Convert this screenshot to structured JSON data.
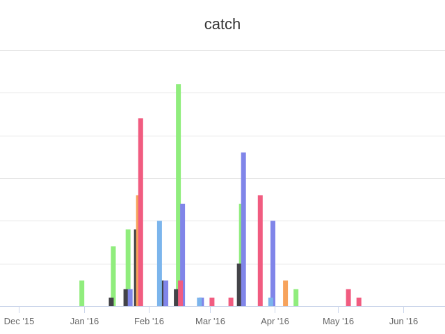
{
  "chart_data": {
    "type": "bar",
    "title": "catch",
    "xlabel": "",
    "ylabel": "",
    "ylim": [
      0,
      6
    ],
    "grid": true,
    "legend": "none",
    "x_range": [
      "2015-11-22",
      "2016-06-21"
    ],
    "x_ticks": [
      {
        "date": "2015-12-01",
        "label": "Dec '15"
      },
      {
        "date": "2016-01-01",
        "label": "Jan '16"
      },
      {
        "date": "2016-02-01",
        "label": "Feb '16"
      },
      {
        "date": "2016-03-01",
        "label": "Mar '16"
      },
      {
        "date": "2016-04-01",
        "label": "Apr '16"
      },
      {
        "date": "2016-05-01",
        "label": "May '16"
      },
      {
        "date": "2016-06-01",
        "label": "Jun '16"
      }
    ],
    "y_ticks": [
      0,
      1,
      2,
      3,
      4,
      5,
      6
    ],
    "series": [
      {
        "color": "#90ed7d",
        "points": [
          {
            "x": "2015-12-31",
            "y": 0.6
          },
          {
            "x": "2016-01-15",
            "y": 1.4
          },
          {
            "x": "2016-01-22",
            "y": 1.8
          },
          {
            "x": "2016-02-07",
            "y": 0.4
          },
          {
            "x": "2016-02-15",
            "y": 5.2
          },
          {
            "x": "2016-03-16",
            "y": 2.4
          },
          {
            "x": "2016-04-11",
            "y": 0.4
          }
        ]
      },
      {
        "color": "#434348",
        "points": [
          {
            "x": "2016-01-14",
            "y": 0.2
          },
          {
            "x": "2016-01-21",
            "y": 0.4
          },
          {
            "x": "2016-01-26",
            "y": 1.8
          },
          {
            "x": "2016-02-07",
            "y": 0.6
          },
          {
            "x": "2016-02-14",
            "y": 0.4
          },
          {
            "x": "2016-03-15",
            "y": 1.0
          }
        ]
      },
      {
        "color": "#8085e9",
        "points": [
          {
            "x": "2016-01-23",
            "y": 0.4
          },
          {
            "x": "2016-02-09",
            "y": 0.6
          },
          {
            "x": "2016-02-17",
            "y": 2.4
          },
          {
            "x": "2016-02-26",
            "y": 0.2
          },
          {
            "x": "2016-03-17",
            "y": 3.6
          },
          {
            "x": "2016-03-31",
            "y": 2.0
          }
        ]
      },
      {
        "color": "#f7a35c",
        "points": [
          {
            "x": "2016-01-27",
            "y": 2.6
          },
          {
            "x": "2016-04-06",
            "y": 0.6
          }
        ]
      },
      {
        "color": "#f15c80",
        "points": [
          {
            "x": "2016-01-28",
            "y": 4.4
          },
          {
            "x": "2016-02-16",
            "y": 0.6
          },
          {
            "x": "2016-03-02",
            "y": 0.2
          },
          {
            "x": "2016-03-11",
            "y": 0.2
          },
          {
            "x": "2016-03-25",
            "y": 2.6
          },
          {
            "x": "2016-05-06",
            "y": 0.4
          },
          {
            "x": "2016-05-11",
            "y": 0.2
          }
        ]
      },
      {
        "color": "#7cb5ec",
        "points": [
          {
            "x": "2016-02-06",
            "y": 2.0
          },
          {
            "x": "2016-02-25",
            "y": 0.2
          },
          {
            "x": "2016-03-30",
            "y": 0.2
          }
        ]
      }
    ]
  }
}
